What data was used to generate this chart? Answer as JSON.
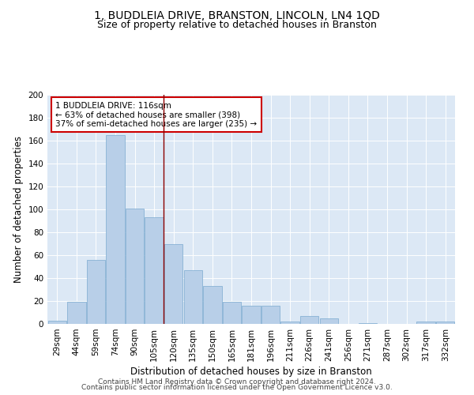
{
  "title": "1, BUDDLEIA DRIVE, BRANSTON, LINCOLN, LN4 1QD",
  "subtitle": "Size of property relative to detached houses in Branston",
  "xlabel": "Distribution of detached houses by size in Branston",
  "ylabel": "Number of detached properties",
  "categories": [
    "29sqm",
    "44sqm",
    "59sqm",
    "74sqm",
    "90sqm",
    "105sqm",
    "120sqm",
    "135sqm",
    "150sqm",
    "165sqm",
    "181sqm",
    "196sqm",
    "211sqm",
    "226sqm",
    "241sqm",
    "256sqm",
    "271sqm",
    "287sqm",
    "302sqm",
    "317sqm",
    "332sqm"
  ],
  "values": [
    3,
    19,
    56,
    165,
    101,
    93,
    70,
    47,
    33,
    19,
    16,
    16,
    2,
    7,
    5,
    0,
    1,
    0,
    0,
    2,
    2
  ],
  "bar_color": "#b8cfe8",
  "bar_edge_color": "#7aaacf",
  "background_color": "#dce8f5",
  "vline_x": 5.5,
  "vline_color": "#8b0000",
  "annotation_text_line1": "1 BUDDLEIA DRIVE: 116sqm",
  "annotation_text_line2": "← 63% of detached houses are smaller (398)",
  "annotation_text_line3": "37% of semi-detached houses are larger (235) →",
  "annotation_box_color": "#cc0000",
  "ylim": [
    0,
    200
  ],
  "yticks": [
    0,
    20,
    40,
    60,
    80,
    100,
    120,
    140,
    160,
    180,
    200
  ],
  "footer1": "Contains HM Land Registry data © Crown copyright and database right 2024.",
  "footer2": "Contains public sector information licensed under the Open Government Licence v3.0.",
  "title_fontsize": 10,
  "subtitle_fontsize": 9,
  "axis_label_fontsize": 8.5,
  "tick_fontsize": 7.5,
  "annotation_fontsize": 7.5,
  "footer_fontsize": 6.5
}
